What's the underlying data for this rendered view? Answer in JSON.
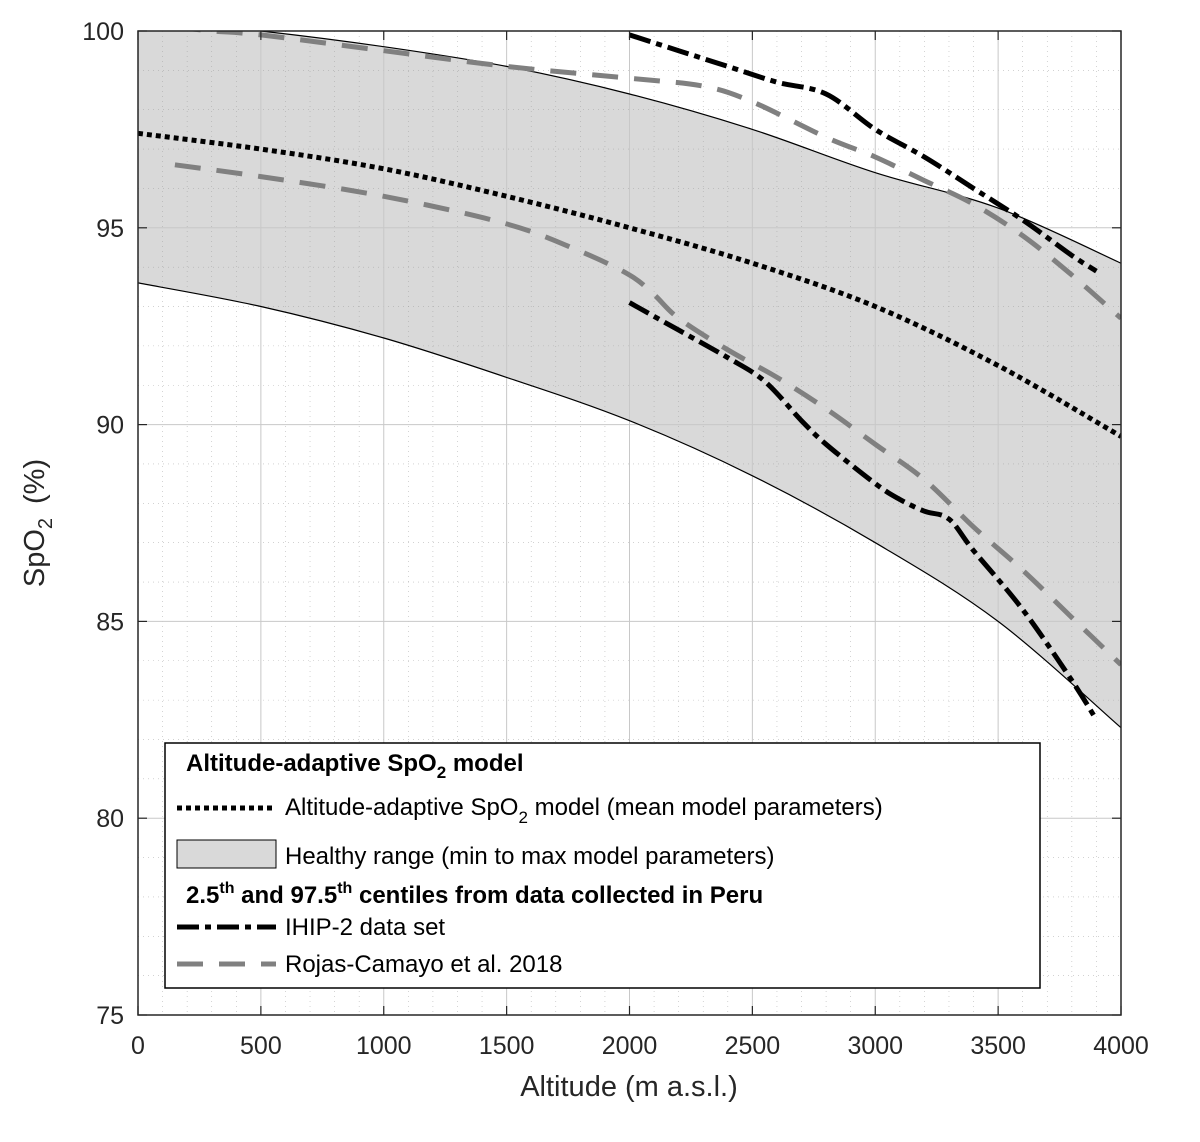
{
  "chart_data": {
    "type": "line",
    "xlabel": "Altitude (m a.s.l.)",
    "ylabel_main": "SpO",
    "ylabel_sub": "2",
    "ylabel_unit": "(%)",
    "xlim": [
      0,
      4000
    ],
    "ylim": [
      75,
      100
    ],
    "x_ticks": [
      "0",
      "500",
      "1000",
      "1500",
      "2000",
      "2500",
      "3000",
      "3500",
      "4000"
    ],
    "y_ticks": [
      "75",
      "80",
      "85",
      "90",
      "95",
      "100"
    ],
    "grid": true,
    "minor_grid": true,
    "legend_position": "bottom-left",
    "band": {
      "name": "Healthy range (min to max model parameters)",
      "x": [
        0,
        500,
        1000,
        1500,
        2000,
        2500,
        3000,
        3500,
        4000
      ],
      "upper": [
        100.3,
        100.0,
        99.6,
        99.1,
        98.4,
        97.5,
        96.4,
        95.5,
        94.1
      ],
      "lower": [
        93.6,
        93.0,
        92.2,
        91.2,
        90.1,
        88.7,
        87.0,
        85.0,
        82.3
      ],
      "color": "#d9d9d9"
    },
    "series": [
      {
        "name": "Altitude-adaptive SpO2 model (mean model parameters)",
        "style": "dotted",
        "color": "#000000",
        "x": [
          0,
          500,
          1000,
          1500,
          2000,
          2500,
          3000,
          3500,
          4000
        ],
        "y": [
          97.4,
          97.0,
          96.5,
          95.8,
          95.0,
          94.1,
          93.0,
          91.5,
          89.7
        ]
      },
      {
        "name": "IHIP-2 data set",
        "style": "dashdot",
        "color": "#000000",
        "segments": [
          {
            "x": [
              2000,
              2200,
              2400,
              2600,
              2800,
              3000,
              3200,
              3400,
              3600,
              3800,
              3900
            ],
            "y": [
              99.9,
              99.5,
              99.1,
              98.7,
              98.4,
              97.5,
              96.8,
              96.0,
              95.2,
              94.3,
              93.9
            ]
          },
          {
            "x": [
              2000,
              2200,
              2400,
              2550,
              2700,
              2800,
              3000,
              3100,
              3200,
              3300,
              3400,
              3600,
              3800,
              3900
            ],
            "y": [
              93.1,
              92.4,
              91.7,
              91.1,
              90.1,
              89.5,
              88.5,
              88.1,
              87.8,
              87.6,
              86.8,
              85.3,
              83.5,
              82.5
            ]
          }
        ]
      },
      {
        "name": "Rojas-Camayo et al. 2018",
        "style": "dashed",
        "color": "#808080",
        "segments": [
          {
            "x": [
              150,
              300,
              500,
              1000,
              1500,
              2000,
              2300,
              2500,
              2800,
              3000,
              3200,
              3400,
              3600,
              3800,
              4000
            ],
            "y": [
              100.1,
              100.0,
              99.9,
              99.5,
              99.1,
              98.8,
              98.6,
              98.2,
              97.3,
              96.8,
              96.2,
              95.6,
              94.8,
              93.8,
              92.7
            ]
          },
          {
            "x": [
              150,
              500,
              1000,
              1500,
              1800,
              2000,
              2100,
              2200,
              2400,
              2600,
              2800,
              3000,
              3200,
              3400,
              3600,
              3800,
              4000
            ],
            "y": [
              96.6,
              96.3,
              95.8,
              95.1,
              94.4,
              93.8,
              93.3,
              92.7,
              91.9,
              91.2,
              90.4,
              89.5,
              88.6,
              87.4,
              86.3,
              85.1,
              83.9
            ]
          }
        ]
      }
    ]
  },
  "legend": {
    "header1_pre": "Altitude-adaptive SpO",
    "header1_sub": "2",
    "header1_post": " model",
    "item_model_pre": "Altitude-adaptive SpO",
    "item_model_sub": "2",
    "item_model_post": " model (mean model parameters)",
    "item_band": "Healthy range (min to max model parameters)",
    "header2_a": "2.5",
    "header2_sup1": "th",
    "header2_b": " and 97.5",
    "header2_sup2": "th",
    "header2_c": " centiles from data collected in Peru",
    "item_ihip": "IHIP-2 data set",
    "item_rojas": "Rojas-Camayo et al. 2018"
  }
}
